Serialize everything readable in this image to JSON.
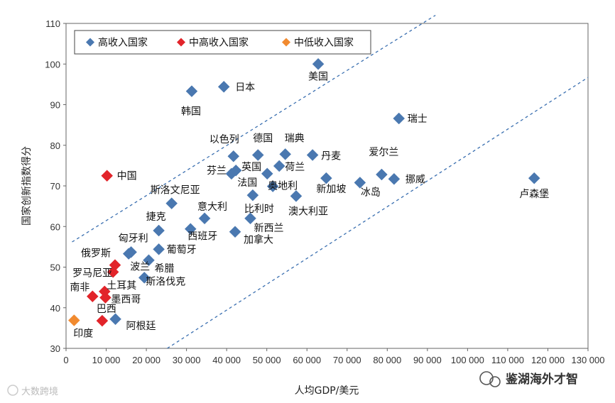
{
  "chart_data": {
    "type": "scatter",
    "xlabel": "人均GDP/美元",
    "ylabel": "国家创新指数得分",
    "xlim": [
      0,
      130000
    ],
    "ylim": [
      30,
      110
    ],
    "xticks": [
      {
        "v": 0,
        "label": "0"
      },
      {
        "v": 10000,
        "label": "10 000"
      },
      {
        "v": 20000,
        "label": "20 000"
      },
      {
        "v": 30000,
        "label": "30 000"
      },
      {
        "v": 40000,
        "label": "40 000"
      },
      {
        "v": 50000,
        "label": "50 000"
      },
      {
        "v": 60000,
        "label": "60 000"
      },
      {
        "v": 70000,
        "label": "70 000"
      },
      {
        "v": 80000,
        "label": "80 000"
      },
      {
        "v": 90000,
        "label": "90 000"
      },
      {
        "v": 100000,
        "label": "100 000"
      },
      {
        "v": 110000,
        "label": "110 000"
      },
      {
        "v": 120000,
        "label": "120 000"
      },
      {
        "v": 130000,
        "label": "130 000"
      }
    ],
    "yticks": [
      {
        "v": 30,
        "label": "30"
      },
      {
        "v": 40,
        "label": "40"
      },
      {
        "v": 50,
        "label": "50"
      },
      {
        "v": 60,
        "label": "60"
      },
      {
        "v": 70,
        "label": "70"
      },
      {
        "v": 80,
        "label": "80"
      },
      {
        "v": 90,
        "label": "90"
      },
      {
        "v": 100,
        "label": "100"
      },
      {
        "v": 110,
        "label": "110"
      }
    ],
    "grid": false,
    "legend_position": "top-left",
    "series": [
      {
        "name": "高收入国家",
        "color": "#4a78b0",
        "points": [
          {
            "label": "美国",
            "x": 62800,
            "y": 100.0,
            "dx": 0,
            "dy": 22,
            "anchor": "middle"
          },
          {
            "label": "日本",
            "x": 39300,
            "y": 94.4,
            "dx": 16,
            "dy": 5,
            "anchor": "start"
          },
          {
            "label": "韩国",
            "x": 31300,
            "y": 93.3,
            "dx": -1,
            "dy": 33,
            "anchor": "middle"
          },
          {
            "label": "瑞士",
            "x": 82900,
            "y": 86.6,
            "dx": 12,
            "dy": 5,
            "anchor": "start"
          },
          {
            "label": "以色列",
            "x": 41700,
            "y": 77.3,
            "dx": -13,
            "dy": -19,
            "anchor": "middle"
          },
          {
            "label": "德国",
            "x": 47800,
            "y": 77.6,
            "dx": 7,
            "dy": -19,
            "anchor": "middle"
          },
          {
            "label": "瑞典",
            "x": 54600,
            "y": 77.8,
            "dx": 13,
            "dy": -18,
            "anchor": "middle"
          },
          {
            "label": "丹麦",
            "x": 61400,
            "y": 77.6,
            "dx": 12,
            "dy": 6,
            "anchor": "start"
          },
          {
            "label": "爱尔兰",
            "x": 78600,
            "y": 72.8,
            "dx": 3,
            "dy": -27,
            "anchor": "middle"
          },
          {
            "label": "芬兰",
            "x": 41200,
            "y": 73.0,
            "dx": -21,
            "dy": 0,
            "anchor": "middle"
          },
          {
            "label": "英国",
            "x": 42300,
            "y": 73.8,
            "dx": 22,
            "dy": 0,
            "anchor": "middle"
          },
          {
            "label": "荷兰",
            "x": 53100,
            "y": 74.9,
            "dx": 22,
            "dy": 6,
            "anchor": "middle"
          },
          {
            "label": "法国",
            "x": 50100,
            "y": 73.0,
            "dx": -28,
            "dy": 17,
            "anchor": "middle"
          },
          {
            "label": "新加坡",
            "x": 64800,
            "y": 71.9,
            "dx": 7,
            "dy": 20,
            "anchor": "middle"
          },
          {
            "label": "冰岛",
            "x": 73200,
            "y": 70.8,
            "dx": 15,
            "dy": 18,
            "anchor": "middle"
          },
          {
            "label": "挪威",
            "x": 81700,
            "y": 71.7,
            "dx": 16,
            "dy": 5,
            "anchor": "start"
          },
          {
            "label": "卢森堡",
            "x": 116600,
            "y": 71.9,
            "dx": 0,
            "dy": 27,
            "anchor": "middle"
          },
          {
            "label": "奥地利",
            "x": 51500,
            "y": 69.9,
            "dx": 14,
            "dy": 4,
            "anchor": "middle"
          },
          {
            "label": "比利时",
            "x": 46500,
            "y": 67.7,
            "dx": 9,
            "dy": 24,
            "anchor": "middle"
          },
          {
            "label": "澳大利亚",
            "x": 57300,
            "y": 67.5,
            "dx": 17,
            "dy": 26,
            "anchor": "middle"
          },
          {
            "label": "斯洛文尼亚",
            "x": 26300,
            "y": 65.7,
            "dx": 5,
            "dy": -14,
            "anchor": "middle"
          },
          {
            "label": "意大利",
            "x": 34500,
            "y": 62.0,
            "dx": 11,
            "dy": -12,
            "anchor": "middle"
          },
          {
            "label": "新西兰",
            "x": 45900,
            "y": 62.0,
            "dx": 5,
            "dy": 18,
            "anchor": "start"
          },
          {
            "label": "捷克",
            "x": 23100,
            "y": 59.0,
            "dx": -4,
            "dy": -15,
            "anchor": "middle"
          },
          {
            "label": "西班牙",
            "x": 31000,
            "y": 59.4,
            "dx": 17,
            "dy": 15,
            "anchor": "middle"
          },
          {
            "label": "加拿大",
            "x": 42100,
            "y": 58.7,
            "dx": 12,
            "dy": 16,
            "anchor": "start"
          },
          {
            "label": "匈牙利",
            "x": 16200,
            "y": 53.7,
            "dx": 3,
            "dy": -15,
            "anchor": "middle"
          },
          {
            "label": "葡萄牙",
            "x": 23100,
            "y": 54.4,
            "dx": 11,
            "dy": 5,
            "anchor": "start"
          },
          {
            "label": "波兰",
            "x": 15600,
            "y": 53.3,
            "dx": 16,
            "dy": 23,
            "anchor": "middle"
          },
          {
            "label": "希腊",
            "x": 20600,
            "y": 51.7,
            "dx": 8,
            "dy": 16,
            "anchor": "start"
          },
          {
            "label": "斯洛伐克",
            "x": 19500,
            "y": 47.4,
            "dx": 2,
            "dy": 10,
            "anchor": "start"
          },
          {
            "label": "阿根廷",
            "x": 12300,
            "y": 37.2,
            "dx": 15,
            "dy": 14,
            "anchor": "start"
          }
        ]
      },
      {
        "name": "中高收入国家",
        "color": "#e2242a",
        "points": [
          {
            "label": "中国",
            "x": 10200,
            "y": 72.5,
            "dx": 14,
            "dy": 5,
            "anchor": "start"
          },
          {
            "label": "俄罗斯",
            "x": 12200,
            "y": 50.5,
            "dx": -27,
            "dy": -12,
            "anchor": "middle"
          },
          {
            "label": "罗马尼亚",
            "x": 11700,
            "y": 48.8,
            "dx": -29,
            "dy": 6,
            "anchor": "middle"
          },
          {
            "label": "土耳其",
            "x": 9600,
            "y": 44.0,
            "dx": 3,
            "dy": -4,
            "anchor": "start"
          },
          {
            "label": "南非",
            "x": 6600,
            "y": 42.8,
            "dx": -18,
            "dy": -8,
            "anchor": "middle"
          },
          {
            "label": "墨西哥",
            "x": 9800,
            "y": 42.5,
            "dx": 8,
            "dy": 7,
            "anchor": "start"
          },
          {
            "label": "巴西",
            "x": 9000,
            "y": 36.8,
            "dx": 6,
            "dy": -12,
            "anchor": "middle"
          }
        ]
      },
      {
        "name": "中低收入国家",
        "color": "#f18a2f",
        "points": [
          {
            "label": "印度",
            "x": 2000,
            "y": 36.9,
            "dx": 13,
            "dy": 23,
            "anchor": "middle"
          }
        ]
      }
    ],
    "reference_lines": [
      {
        "x1": 1500,
        "y1": 56.2,
        "x2": 92000,
        "y2": 112
      },
      {
        "x1": 25200,
        "y1": 30,
        "x2": 130000,
        "y2": 96.7
      }
    ]
  },
  "watermark": {
    "main": "鉴湖海外才智",
    "corner": "大数跨境"
  }
}
